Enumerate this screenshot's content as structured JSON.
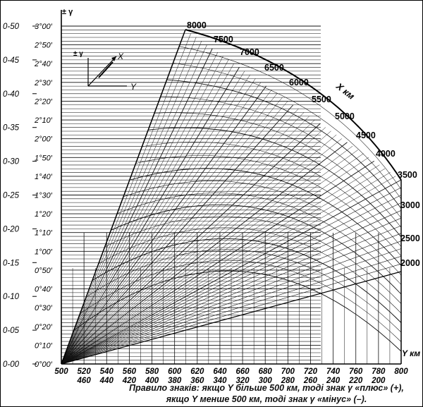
{
  "nomogram": {
    "left_scale_label": "± γ",
    "left_scale_mils": [
      "0-00",
      "0-05",
      "0-10",
      "0-15",
      "0-20",
      "0-25",
      "0-30",
      "0-35",
      "0-40",
      "0-45",
      "0-50"
    ],
    "left_scale_degrees": [
      "0°00′",
      "0°10′",
      "0°20′",
      "0°30′",
      "0°40′",
      "0°50′",
      "1°00′",
      "1°10′",
      "1°20′",
      "1°30′",
      "1°40′",
      "1°50′",
      "2°00′",
      "2°10′",
      "2°20′",
      "2°30′",
      "2°40′",
      "2°50′",
      "3°00′"
    ],
    "bottom_axis_label": "Y км",
    "bottom_ticks_upper": [
      "500",
      "520",
      "540",
      "560",
      "580",
      "600",
      "620",
      "640",
      "660",
      "680",
      "700",
      "720",
      "740",
      "760",
      "780",
      "800"
    ],
    "bottom_ticks_lower": [
      "460",
      "440",
      "420",
      "400",
      "380",
      "360",
      "340",
      "320",
      "300",
      "280",
      "260",
      "240",
      "220",
      "200"
    ],
    "x_axis_label": "X км",
    "x_arc_labels": [
      "8000",
      "7500",
      "7000",
      "6500",
      "6000",
      "5500",
      "5000",
      "4500",
      "4000",
      "3500"
    ],
    "x_right_labels": [
      "3000",
      "2500",
      "2000"
    ],
    "inset": {
      "gamma_label": "± γ",
      "x_label": "X",
      "y_label": "Y"
    }
  },
  "caption": {
    "line1": "Правило знаків: якщо Y більше 500 км, тоді знак γ «плюс» (+),",
    "line2": "якщо Y менше 500 км, тоді знак γ «мінус» (–)."
  }
}
